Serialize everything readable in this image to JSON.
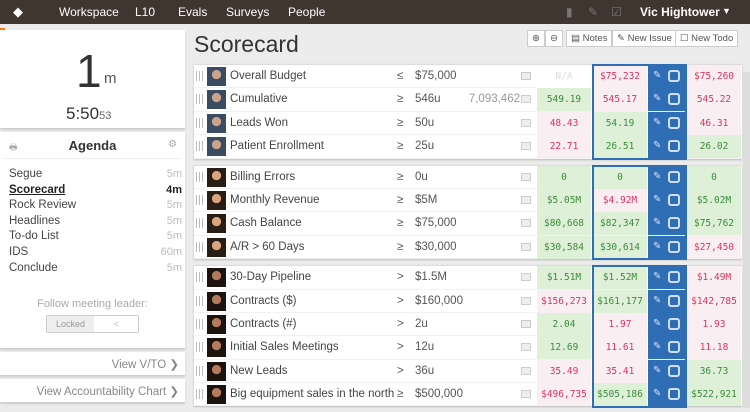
{
  "nav": {
    "items": [
      "Workspace",
      "L10",
      "Evals",
      "Surveys",
      "People"
    ],
    "user": "Vic Hightower"
  },
  "timer": {
    "minutes": "1",
    "unit": "m",
    "clock": "5:50",
    "seconds": "53"
  },
  "agenda": {
    "title": "Agenda",
    "items": [
      {
        "label": "Segue",
        "time": "5m"
      },
      {
        "label": "Scorecard",
        "time": "4m",
        "active": true
      },
      {
        "label": "Rock Review",
        "time": "5m"
      },
      {
        "label": "Headlines",
        "time": "5m"
      },
      {
        "label": "To-do List",
        "time": "5m"
      },
      {
        "label": "IDS",
        "time": "60m"
      },
      {
        "label": "Conclude",
        "time": "5m"
      }
    ],
    "follow_label": "Follow meeting leader:",
    "locked_label": "Locked",
    "toggle_label": "<"
  },
  "links": {
    "vto": "View V/TO ❯",
    "accountability": "View Accountability Chart ❯"
  },
  "page": {
    "title": "Scorecard",
    "notes": "Notes",
    "new_issue": "New Issue",
    "new_todo": "New Todo"
  },
  "colors": {
    "good_bg": "#dff0d8",
    "good_text": "#3d8b3d",
    "bad_bg": "#f9eef2",
    "bad_text": "#d9365e",
    "highlight": "#2f6db5",
    "topbar": "#3f3630"
  },
  "groups": [
    {
      "owner": "man",
      "rows": [
        {
          "name": "Overall Budget",
          "op": "≤",
          "target": "$75,000",
          "cumulative": "",
          "values": [
            [
              "N/A",
              "na"
            ],
            [
              "$75,232",
              "r"
            ],
            [
              "$75,260",
              "r"
            ]
          ]
        },
        {
          "name": "Cumulative",
          "op": "≥",
          "target": "546u",
          "cumulative": "7,093,462",
          "values": [
            [
              "549.19",
              "g"
            ],
            [
              "545.17",
              "r"
            ],
            [
              "545.22",
              "r"
            ]
          ]
        },
        {
          "name": "Leads Won",
          "op": "≥",
          "target": "50u",
          "cumulative": "",
          "values": [
            [
              "48.43",
              "r"
            ],
            [
              "54.19",
              "g"
            ],
            [
              "46.31",
              "r"
            ]
          ]
        },
        {
          "name": "Patient Enrollment",
          "op": "≥",
          "target": "25u",
          "cumulative": "",
          "values": [
            [
              "22.71",
              "r"
            ],
            [
              "26.51",
              "g"
            ],
            [
              "26.02",
              "g"
            ]
          ]
        }
      ]
    },
    {
      "owner": "woman",
      "rows": [
        {
          "name": "Billing Errors",
          "op": "≥",
          "target": "0u",
          "cumulative": "",
          "values": [
            [
              "0",
              "g"
            ],
            [
              "0",
              "g"
            ],
            [
              "0",
              "g"
            ]
          ]
        },
        {
          "name": "Monthly Revenue",
          "op": "≥",
          "target": "$5M",
          "cumulative": "",
          "values": [
            [
              "$5.05M",
              "g"
            ],
            [
              "$4.92M",
              "r"
            ],
            [
              "$5.02M",
              "g"
            ]
          ]
        },
        {
          "name": "Cash Balance",
          "op": "≥",
          "target": "$75,000",
          "cumulative": "",
          "values": [
            [
              "$80,668",
              "g"
            ],
            [
              "$82,347",
              "g"
            ],
            [
              "$75,762",
              "g"
            ]
          ]
        },
        {
          "name": "A/R > 60 Days",
          "op": "≥",
          "target": "$30,000",
          "cumulative": "",
          "values": [
            [
              "$30,584",
              "g"
            ],
            [
              "$30,614",
              "g"
            ],
            [
              "$27,450",
              "r"
            ]
          ]
        }
      ]
    },
    {
      "owner": "woman2",
      "rows": [
        {
          "name": "30-Day Pipeline",
          "op": ">",
          "target": "$1.5M",
          "cumulative": "",
          "values": [
            [
              "$1.51M",
              "g"
            ],
            [
              "$1.52M",
              "g"
            ],
            [
              "$1.49M",
              "r"
            ]
          ]
        },
        {
          "name": "Contracts ($)",
          "op": ">",
          "target": "$160,000",
          "cumulative": "",
          "values": [
            [
              "$156,273",
              "r"
            ],
            [
              "$161,177",
              "g"
            ],
            [
              "$142,785",
              "r"
            ]
          ]
        },
        {
          "name": "Contracts (#)",
          "op": ">",
          "target": "2u",
          "cumulative": "",
          "values": [
            [
              "2.04",
              "g"
            ],
            [
              "1.97",
              "r"
            ],
            [
              "1.93",
              "r"
            ]
          ]
        },
        {
          "name": "Initial Sales Meetings",
          "op": ">",
          "target": "12u",
          "cumulative": "",
          "values": [
            [
              "12.69",
              "g"
            ],
            [
              "11.61",
              "r"
            ],
            [
              "11.18",
              "r"
            ]
          ]
        },
        {
          "name": "New Leads",
          "op": ">",
          "target": "36u",
          "cumulative": "",
          "values": [
            [
              "35.49",
              "r"
            ],
            [
              "35.41",
              "r"
            ],
            [
              "36.73",
              "g"
            ]
          ]
        },
        {
          "name": "Big equipment sales in the north",
          "op": "≥",
          "target": "$500,000",
          "cumulative": "",
          "values": [
            [
              "$496,735",
              "r"
            ],
            [
              "$505,186",
              "g"
            ],
            [
              "$522,921",
              "g"
            ]
          ]
        }
      ]
    }
  ]
}
